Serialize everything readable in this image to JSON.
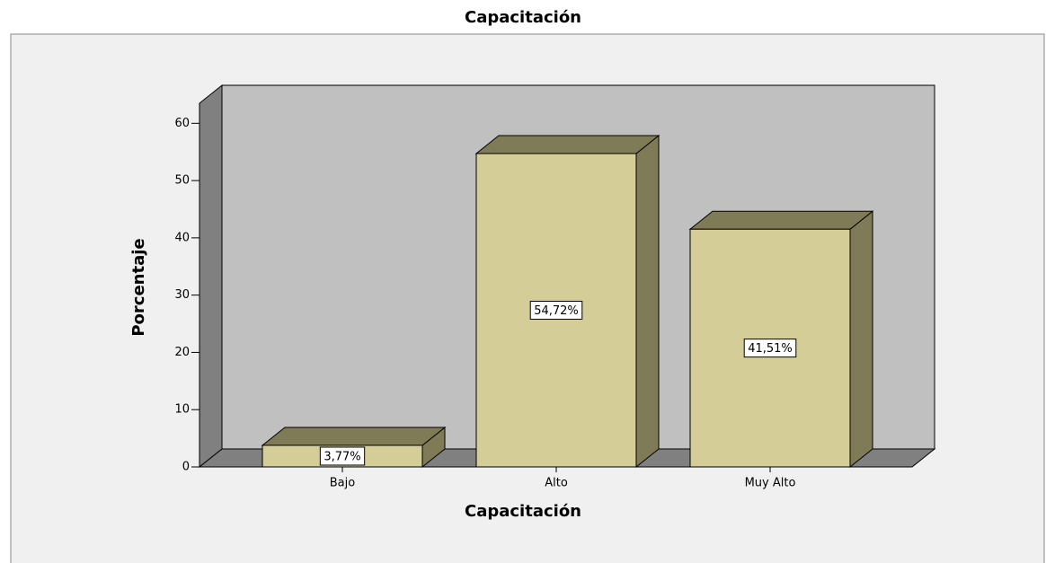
{
  "chart_data": {
    "type": "bar3d",
    "title": "Capacitación",
    "x_label": "Capacitación",
    "y_label": "Porcentaje",
    "categories": [
      "Bajo",
      "Alto",
      "Muy Alto"
    ],
    "values": [
      3.77,
      54.72,
      41.51
    ],
    "value_labels": [
      "3,77%",
      "54,72%",
      "41,51%"
    ],
    "color": "#d4cd98",
    "shade_color": "#7f7b56",
    "ylim": [
      0,
      63.5
    ],
    "yticks": [
      0,
      10,
      20,
      30,
      40,
      50,
      60
    ]
  }
}
